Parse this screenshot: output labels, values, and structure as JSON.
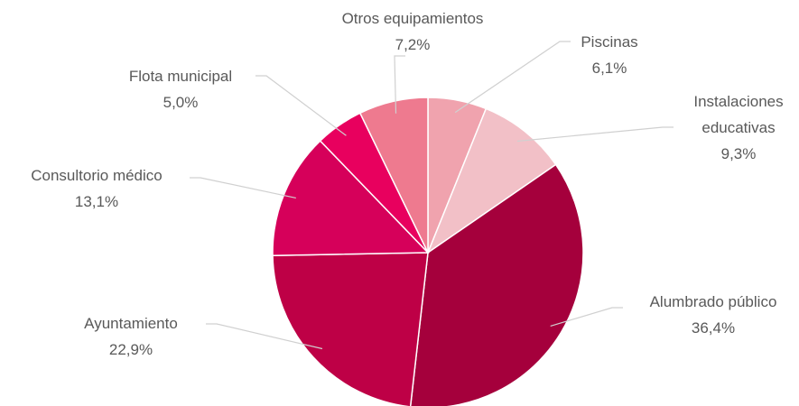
{
  "chart_data": {
    "type": "pie",
    "categories": [
      "Piscinas",
      "Instalaciones educativas",
      "Alumbrado público",
      "Ayuntamiento",
      "Consultorio médico",
      "Flota municipal",
      "Otros equipamientos"
    ],
    "values": [
      6.1,
      9.3,
      36.4,
      22.9,
      13.1,
      5.0,
      7.2
    ],
    "value_labels": [
      "6,1%",
      "9,3%",
      "36,4%",
      "22,9%",
      "13,1%",
      "5,0%",
      "7,2%"
    ],
    "colors": [
      "#f0a3ae",
      "#f2c0c7",
      "#a5003c",
      "#be0046",
      "#d6005a",
      "#e8005e",
      "#ee7a8f"
    ]
  }
}
